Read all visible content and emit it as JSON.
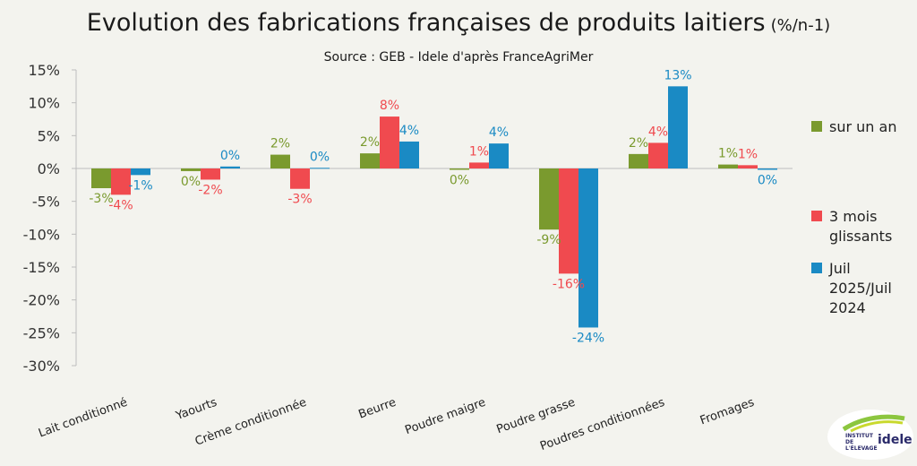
{
  "title": "Evolution des fabrications françaises de produits laitiers",
  "title_unit": "(%/n-1)",
  "subtitle": "Source : GEB - Idele d'après FranceAgriMer",
  "logo": {
    "small_text": "INSTITUT DE L'ÉLEVAGE",
    "name": "idele"
  },
  "colors": {
    "sur_un_an": "#7a9a2e",
    "trois_mois": "#f04a4f",
    "juil": "#1a8ac4",
    "background": "#f3f3ee"
  },
  "chart_data": {
    "type": "bar",
    "categories": [
      "Lait conditionné",
      "Yaourts",
      "Crème conditionnée",
      "Beurre",
      "Poudre maigre",
      "Poudre grasse",
      "Poudres conditionnées",
      "Fromages"
    ],
    "series": [
      {
        "name": "sur un an",
        "values": [
          -3,
          -0.4,
          2.1,
          2.3,
          -0.2,
          -9.3,
          2.2,
          0.6
        ],
        "labels": [
          "-3%",
          "0%",
          "2%",
          "2%",
          "0%",
          "-9%",
          "2%",
          "1%"
        ]
      },
      {
        "name": "3 mois glissants",
        "values": [
          -4,
          -1.7,
          -3.1,
          7.9,
          0.9,
          -16,
          3.9,
          0.5
        ],
        "labels": [
          "-4%",
          "-2%",
          "-3%",
          "8%",
          "1%",
          "-16%",
          "4%",
          "1%"
        ]
      },
      {
        "name": "Juil 2025/Juil 2024",
        "values": [
          -1,
          0.3,
          0.1,
          4.1,
          3.8,
          -24.2,
          12.5,
          -0.2
        ],
        "labels": [
          "-1%",
          "0%",
          "0%",
          "4%",
          "4%",
          "-24%",
          "13%",
          "0%"
        ]
      }
    ],
    "ylim": [
      -30,
      15
    ],
    "yticks": [
      15,
      10,
      5,
      0,
      -5,
      -10,
      -15,
      -20,
      -25,
      -30
    ],
    "ytick_labels": [
      "15%",
      "10%",
      "5%",
      "0%",
      "-5%",
      "-10%",
      "-15%",
      "-20%",
      "-25%",
      "-30%"
    ],
    "legend_position": "right",
    "grid": false
  }
}
